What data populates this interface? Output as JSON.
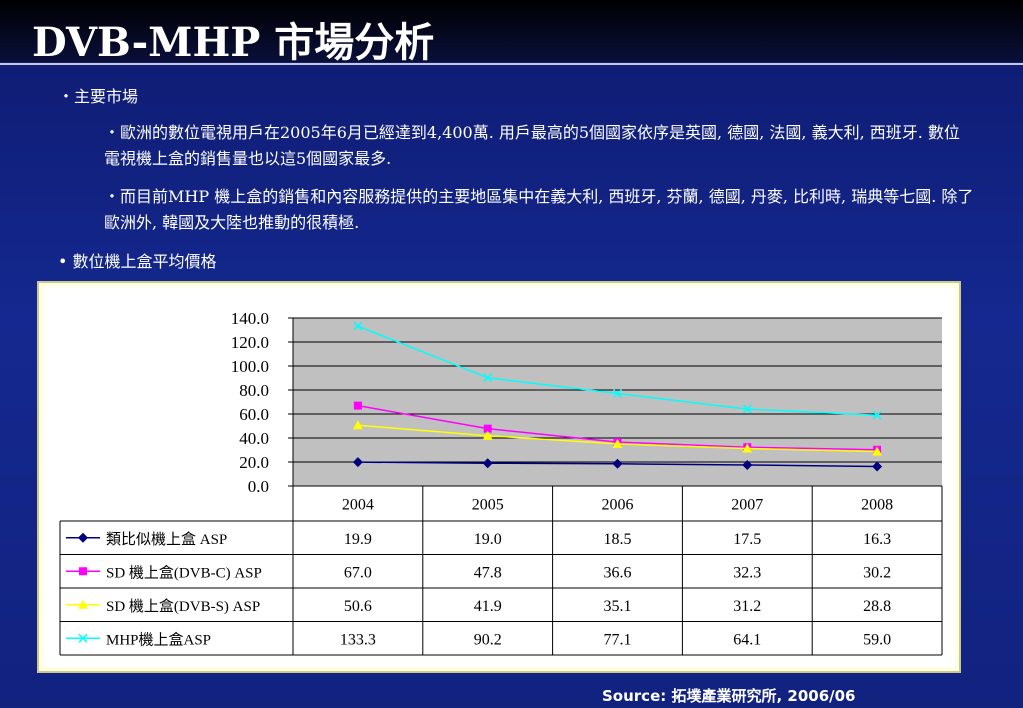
{
  "title": "DVB-MHP 市場分析",
  "bullets": {
    "main_market": "・主要市場",
    "europe": "・歐洲的數位電視用戶在2005年6月已經達到4,400萬. 用戶最高的5個國家依序是英國, 德國, 法國, 義大利, 西班牙. 數位電視機上盒的銷售量也以這5個國家最多.",
    "mhp": "・而目前MHP 機上盒的銷售和內容服務提供的主要地區集中在義大利, 西班牙, 芬蘭, 德國, 丹麥, 比利時, 瑞典等七國. 除了歐洲外, 韓國及大陸也推動的很積極.",
    "avg_price": "• 數位機上盒平均價格"
  },
  "source": "Source: 拓墣產業研究所, 2006/06",
  "chart_data": {
    "type": "line",
    "categories": [
      "2004",
      "2005",
      "2006",
      "2007",
      "2008"
    ],
    "ylim": [
      0,
      140
    ],
    "yticks": [
      "0.0",
      "20.0",
      "40.0",
      "60.0",
      "80.0",
      "100.0",
      "120.0",
      "140.0"
    ],
    "grid": true,
    "series": [
      {
        "name": "類比似機上盒 ASP",
        "values": [
          19.9,
          19.0,
          18.5,
          17.5,
          16.3
        ],
        "labels": [
          "19.9",
          "19.0",
          "18.5",
          "17.5",
          "16.3"
        ],
        "color": "#00007f",
        "marker": "diamond"
      },
      {
        "name": "SD 機上盒(DVB-C) ASP",
        "values": [
          67.0,
          47.8,
          36.6,
          32.3,
          30.2
        ],
        "labels": [
          "67.0",
          "47.8",
          "36.6",
          "32.3",
          "30.2"
        ],
        "color": "#ff00ff",
        "marker": "square"
      },
      {
        "name": "SD 機上盒(DVB-S) ASP",
        "values": [
          50.6,
          41.9,
          35.1,
          31.2,
          28.8
        ],
        "labels": [
          "50.6",
          "41.9",
          "35.1",
          "31.2",
          "28.8"
        ],
        "color": "#ffff00",
        "marker": "triangle"
      },
      {
        "name": "MHP機上盒ASP",
        "values": [
          133.3,
          90.2,
          77.1,
          64.1,
          59.0
        ],
        "labels": [
          "133.3",
          "90.2",
          "77.1",
          "64.1",
          "59.0"
        ],
        "color": "#00ffff",
        "marker": "x"
      }
    ]
  }
}
